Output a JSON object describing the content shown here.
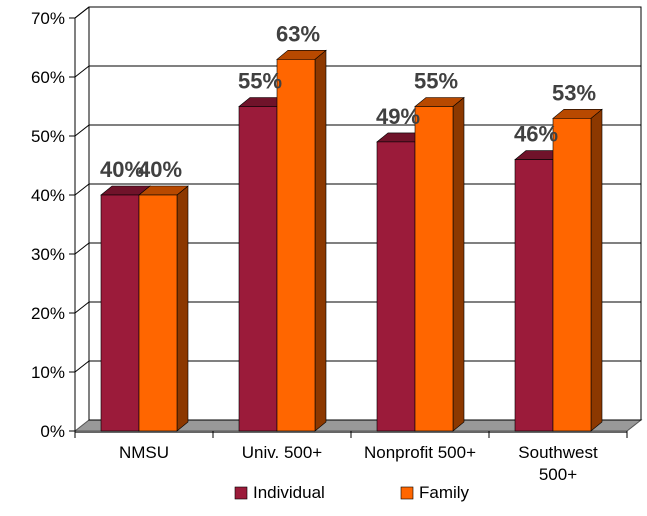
{
  "chart_data": {
    "type": "bar",
    "style": "3d-clustered-column",
    "title": "",
    "xlabel": "",
    "ylabel": "",
    "ylim": [
      0,
      70
    ],
    "yticks": [
      "0%",
      "10%",
      "20%",
      "30%",
      "40%",
      "50%",
      "60%",
      "70%"
    ],
    "grid": true,
    "legend_position": "bottom",
    "categories": [
      [
        "NMSU"
      ],
      [
        "Univ. 500+"
      ],
      [
        "Nonprofit 500+"
      ],
      [
        "Southwest",
        "500+"
      ]
    ],
    "series": [
      {
        "name": "Individual",
        "color": "#9b1b3a",
        "values": [
          40,
          55,
          49,
          46
        ],
        "labels": [
          "40%",
          "55%",
          "49%",
          "46%"
        ]
      },
      {
        "name": "Family",
        "color": "#ff6600",
        "values": [
          40,
          63,
          55,
          53
        ],
        "labels": [
          "40%",
          "63%",
          "55%",
          "53%"
        ]
      }
    ]
  }
}
